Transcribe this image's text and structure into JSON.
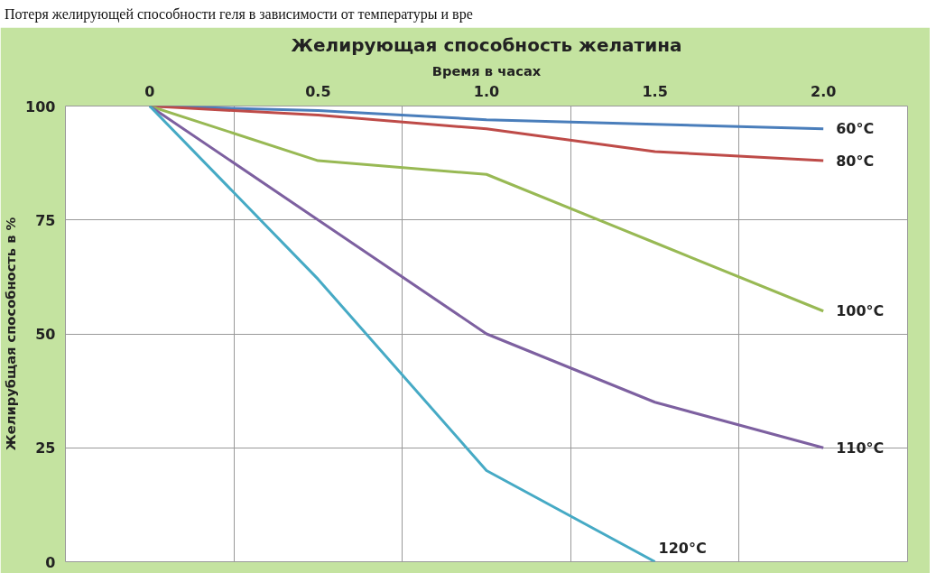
{
  "chart_data": {
    "type": "line",
    "title": "Желирующая способность желатина",
    "xlabel": "Время в часах",
    "ylabel": "Желирубщая способность в %",
    "annotations": [
      "Потеря желирующей способности геля в зависимости от температуры и вре"
    ],
    "categories": [
      "0",
      "0.5",
      "1.0",
      "1.5",
      "2.0"
    ],
    "series": [
      {
        "name": "60°C",
        "color": "#4a7ebb",
        "values": [
          100,
          99,
          97,
          96,
          95
        ]
      },
      {
        "name": "80°C",
        "color": "#be4b48",
        "values": [
          100,
          98,
          95,
          90,
          88
        ]
      },
      {
        "name": "100°C",
        "color": "#98b954",
        "values": [
          100,
          88,
          85,
          70,
          55
        ]
      },
      {
        "name": "110°C",
        "color": "#7d60a0",
        "values": [
          100,
          75,
          50,
          35,
          25
        ]
      },
      {
        "name": "120°C",
        "color": "#46aac5",
        "values": [
          100,
          62,
          20,
          0,
          null
        ]
      }
    ],
    "ylim": [
      0,
      100
    ],
    "yticks": [
      0,
      25,
      50,
      75,
      100
    ],
    "grid": true,
    "marker": "none",
    "line_style": "solid"
  }
}
